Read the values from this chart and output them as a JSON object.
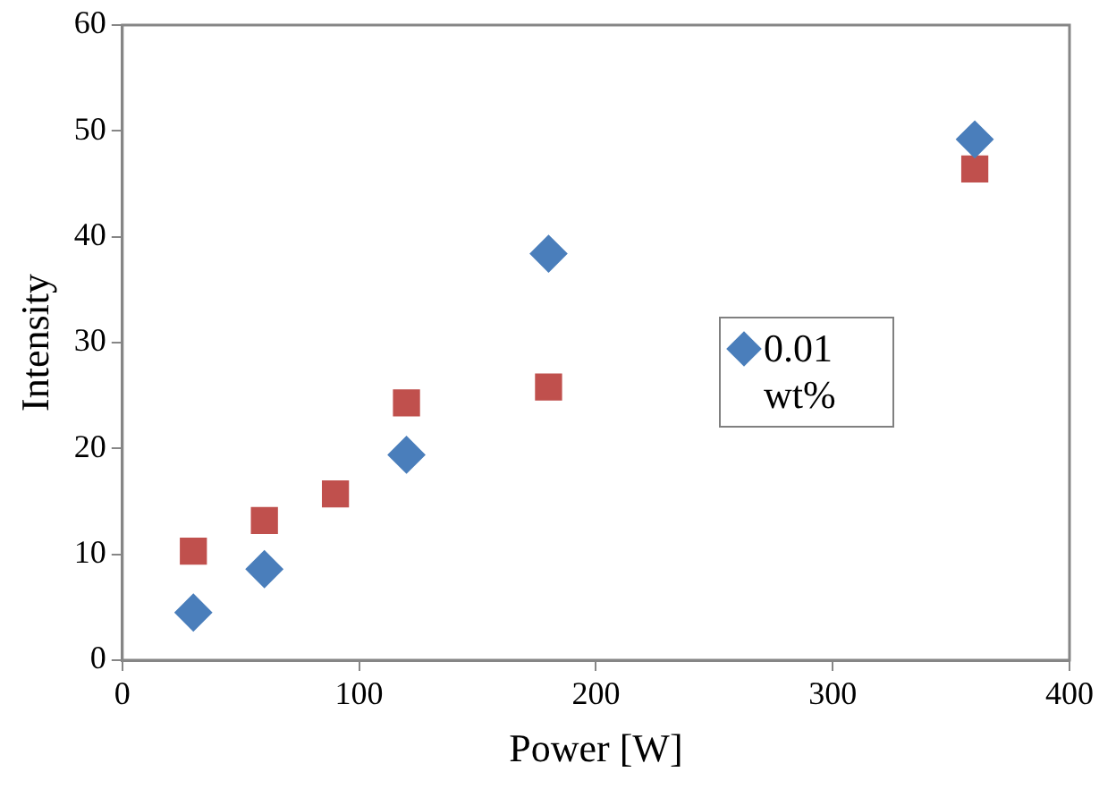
{
  "chart_data": {
    "type": "scatter",
    "xlabel": "Power [W]",
    "ylabel": "Intensity",
    "xlim": [
      0,
      400
    ],
    "xticks": [
      0,
      100,
      200,
      300,
      400
    ],
    "ylim": [
      0,
      60
    ],
    "yticks": [
      0,
      10,
      20,
      30,
      40,
      50,
      60
    ],
    "grid": false,
    "legend": "right",
    "series": [
      {
        "name": "0.01 wt%",
        "color": "#4a7ebb",
        "marker": "diamond",
        "x": [
          30,
          60,
          120,
          180,
          360
        ],
        "values": [
          4.5,
          8.6,
          19.4,
          38.4,
          49.2
        ]
      },
      {
        "color": "#c0504d",
        "marker": "square",
        "x": [
          30,
          60,
          90,
          120,
          180,
          360
        ],
        "values": [
          10.3,
          13.2,
          15.7,
          24.3,
          25.8,
          46.4
        ]
      }
    ]
  }
}
